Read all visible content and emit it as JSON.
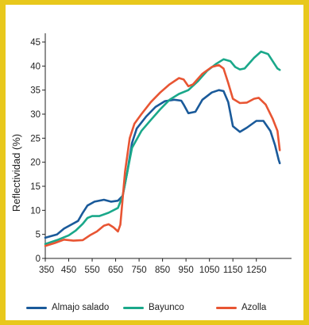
{
  "chart_data": {
    "type": "line",
    "title": "",
    "xlabel": "",
    "ylabel": "Reflectividad (%)",
    "xlim": [
      350,
      1400
    ],
    "ylim": [
      0,
      45
    ],
    "x_ticks": [
      350,
      450,
      550,
      650,
      750,
      850,
      950,
      1050,
      1150,
      1250
    ],
    "y_ticks": [
      0,
      5,
      10,
      15,
      20,
      25,
      30,
      35,
      40,
      45
    ],
    "grid": false,
    "legend_position": "bottom",
    "series": [
      {
        "name": "Almajo salado",
        "color": "#1a5a9a",
        "points": [
          [
            350,
            4.3
          ],
          [
            400,
            5.0
          ],
          [
            430,
            6.2
          ],
          [
            460,
            7.0
          ],
          [
            490,
            7.8
          ],
          [
            510,
            9.5
          ],
          [
            530,
            11.0
          ],
          [
            560,
            11.8
          ],
          [
            600,
            12.2
          ],
          [
            630,
            11.8
          ],
          [
            660,
            12.0
          ],
          [
            680,
            13.0
          ],
          [
            700,
            18.0
          ],
          [
            720,
            24.0
          ],
          [
            740,
            27.0
          ],
          [
            780,
            29.5
          ],
          [
            820,
            31.5
          ],
          [
            860,
            32.7
          ],
          [
            900,
            33.0
          ],
          [
            930,
            32.8
          ],
          [
            940,
            32.0
          ],
          [
            960,
            30.2
          ],
          [
            990,
            30.5
          ],
          [
            1020,
            33.0
          ],
          [
            1060,
            34.5
          ],
          [
            1090,
            35.0
          ],
          [
            1110,
            34.8
          ],
          [
            1130,
            32.5
          ],
          [
            1150,
            27.5
          ],
          [
            1180,
            26.3
          ],
          [
            1210,
            27.2
          ],
          [
            1250,
            28.6
          ],
          [
            1280,
            28.6
          ],
          [
            1310,
            26.5
          ],
          [
            1330,
            23.5
          ],
          [
            1345,
            20.5
          ],
          [
            1350,
            19.8
          ]
        ]
      },
      {
        "name": "Bayunco",
        "color": "#1aa88a",
        "points": [
          [
            350,
            3.0
          ],
          [
            400,
            3.8
          ],
          [
            450,
            4.8
          ],
          [
            480,
            5.8
          ],
          [
            510,
            7.2
          ],
          [
            530,
            8.4
          ],
          [
            550,
            8.8
          ],
          [
            580,
            8.8
          ],
          [
            620,
            9.5
          ],
          [
            660,
            10.5
          ],
          [
            680,
            13.0
          ],
          [
            700,
            18.0
          ],
          [
            720,
            23.0
          ],
          [
            760,
            26.5
          ],
          [
            800,
            28.8
          ],
          [
            840,
            31.0
          ],
          [
            880,
            33.0
          ],
          [
            920,
            34.2
          ],
          [
            960,
            35.0
          ],
          [
            1000,
            36.8
          ],
          [
            1040,
            39.0
          ],
          [
            1080,
            40.5
          ],
          [
            1110,
            41.4
          ],
          [
            1140,
            41.0
          ],
          [
            1160,
            39.8
          ],
          [
            1180,
            39.3
          ],
          [
            1200,
            39.5
          ],
          [
            1240,
            41.7
          ],
          [
            1270,
            43.0
          ],
          [
            1300,
            42.5
          ],
          [
            1320,
            41.0
          ],
          [
            1340,
            39.5
          ],
          [
            1350,
            39.2
          ]
        ]
      },
      {
        "name": "Azolla",
        "color": "#e85533",
        "points": [
          [
            350,
            2.6
          ],
          [
            390,
            3.2
          ],
          [
            430,
            3.9
          ],
          [
            470,
            3.7
          ],
          [
            510,
            3.8
          ],
          [
            540,
            4.8
          ],
          [
            570,
            5.6
          ],
          [
            600,
            6.8
          ],
          [
            620,
            7.1
          ],
          [
            640,
            6.5
          ],
          [
            660,
            5.6
          ],
          [
            670,
            7.0
          ],
          [
            690,
            18.0
          ],
          [
            710,
            25.0
          ],
          [
            730,
            28.0
          ],
          [
            760,
            30.0
          ],
          [
            800,
            32.5
          ],
          [
            840,
            34.5
          ],
          [
            880,
            36.2
          ],
          [
            920,
            37.5
          ],
          [
            940,
            37.2
          ],
          [
            960,
            35.8
          ],
          [
            980,
            36.2
          ],
          [
            1020,
            38.4
          ],
          [
            1060,
            39.8
          ],
          [
            1090,
            40.2
          ],
          [
            1110,
            39.5
          ],
          [
            1130,
            36.5
          ],
          [
            1150,
            33.2
          ],
          [
            1180,
            32.3
          ],
          [
            1210,
            32.4
          ],
          [
            1240,
            33.2
          ],
          [
            1260,
            33.4
          ],
          [
            1290,
            32.0
          ],
          [
            1320,
            29.0
          ],
          [
            1340,
            26.5
          ],
          [
            1350,
            22.5
          ]
        ]
      }
    ]
  }
}
